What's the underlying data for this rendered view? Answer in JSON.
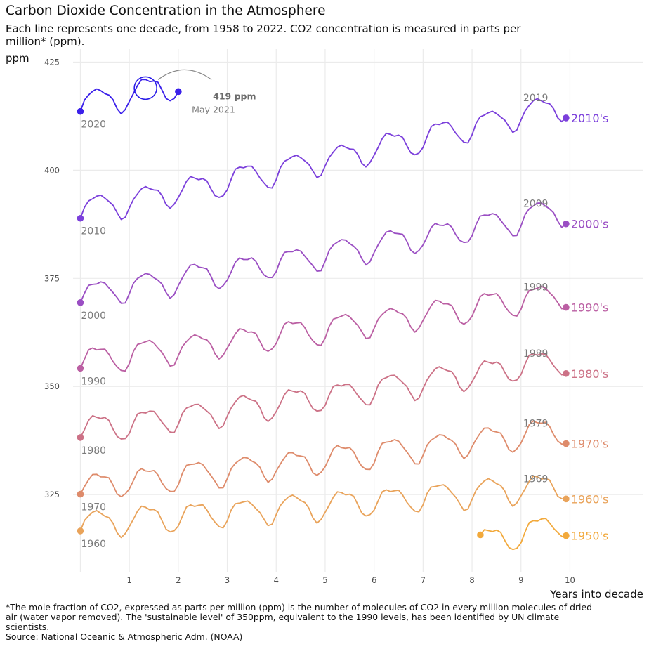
{
  "header": {
    "title": "Carbon Dioxide Concentration in the Atmosphere",
    "subtitle": "Each line represents one decade, from 1958 to 2022. CO2 concentration is measured in parts per million* (ppm)."
  },
  "footer": {
    "note": "*The mole fraction of CO2, expressed as parts per million (ppm) is the number of molecules of CO2 in every million molecules of dried air (water vapor removed). The 'sustainable level' of 350ppm, equivalent to the 1990 levels, has been identified by UN climate scientists.",
    "source": "Source: National Oceanic & Atmospheric Adm. (NOAA)"
  },
  "chart_data": {
    "type": "line",
    "xlabel": "Years into decade",
    "ylabel": "ppm",
    "xlim": [
      -0.15,
      11.5
    ],
    "ylim": [
      307,
      428
    ],
    "x_ticks": [
      1,
      2,
      3,
      4,
      5,
      6,
      7,
      8,
      9,
      10
    ],
    "y_ticks": [
      325,
      350,
      375,
      400,
      425
    ],
    "grid": true,
    "series": [
      {
        "name": "1950's",
        "color": "#f2a93b",
        "start_x": 8.17,
        "start_y": 315.7,
        "end_y": 315.5,
        "start_label": "",
        "end_year_label": ""
      },
      {
        "name": "1960's",
        "color": "#e9a35a",
        "start_x": 0,
        "start_y": 316.6,
        "end_y": 324.0,
        "start_label": "1960",
        "end_year_label": "1969"
      },
      {
        "name": "1970's",
        "color": "#de8b6b",
        "start_x": 0,
        "start_y": 325.1,
        "end_y": 336.8,
        "start_label": "1970",
        "end_year_label": "1979"
      },
      {
        "name": "1980's",
        "color": "#cc7186",
        "start_x": 0,
        "start_y": 338.2,
        "end_y": 353.0,
        "start_label": "1980",
        "end_year_label": "1989"
      },
      {
        "name": "1990's",
        "color": "#bb5fa3",
        "start_x": 0,
        "start_y": 354.2,
        "end_y": 368.3,
        "start_label": "1990",
        "end_year_label": "1999"
      },
      {
        "name": "2000's",
        "color": "#9a4ec3",
        "start_x": 0,
        "start_y": 369.4,
        "end_y": 387.6,
        "start_label": "2000",
        "end_year_label": "2009"
      },
      {
        "name": "2010's",
        "color": "#7b3fdb",
        "start_x": 0,
        "start_y": 388.9,
        "end_y": 412.1,
        "start_label": "2010",
        "end_year_label": "2019"
      },
      {
        "name": "",
        "color": "#3b20ea",
        "start_x": 0,
        "start_y": 413.6,
        "end_y": 418.2,
        "end_x": 2.0,
        "start_label": "2020",
        "end_year_label": ""
      }
    ],
    "annotation": {
      "value_label": "419 ppm",
      "date_label": "May 2021",
      "x": 1.33,
      "y": 419.0,
      "color": "#2a1ce8"
    }
  }
}
